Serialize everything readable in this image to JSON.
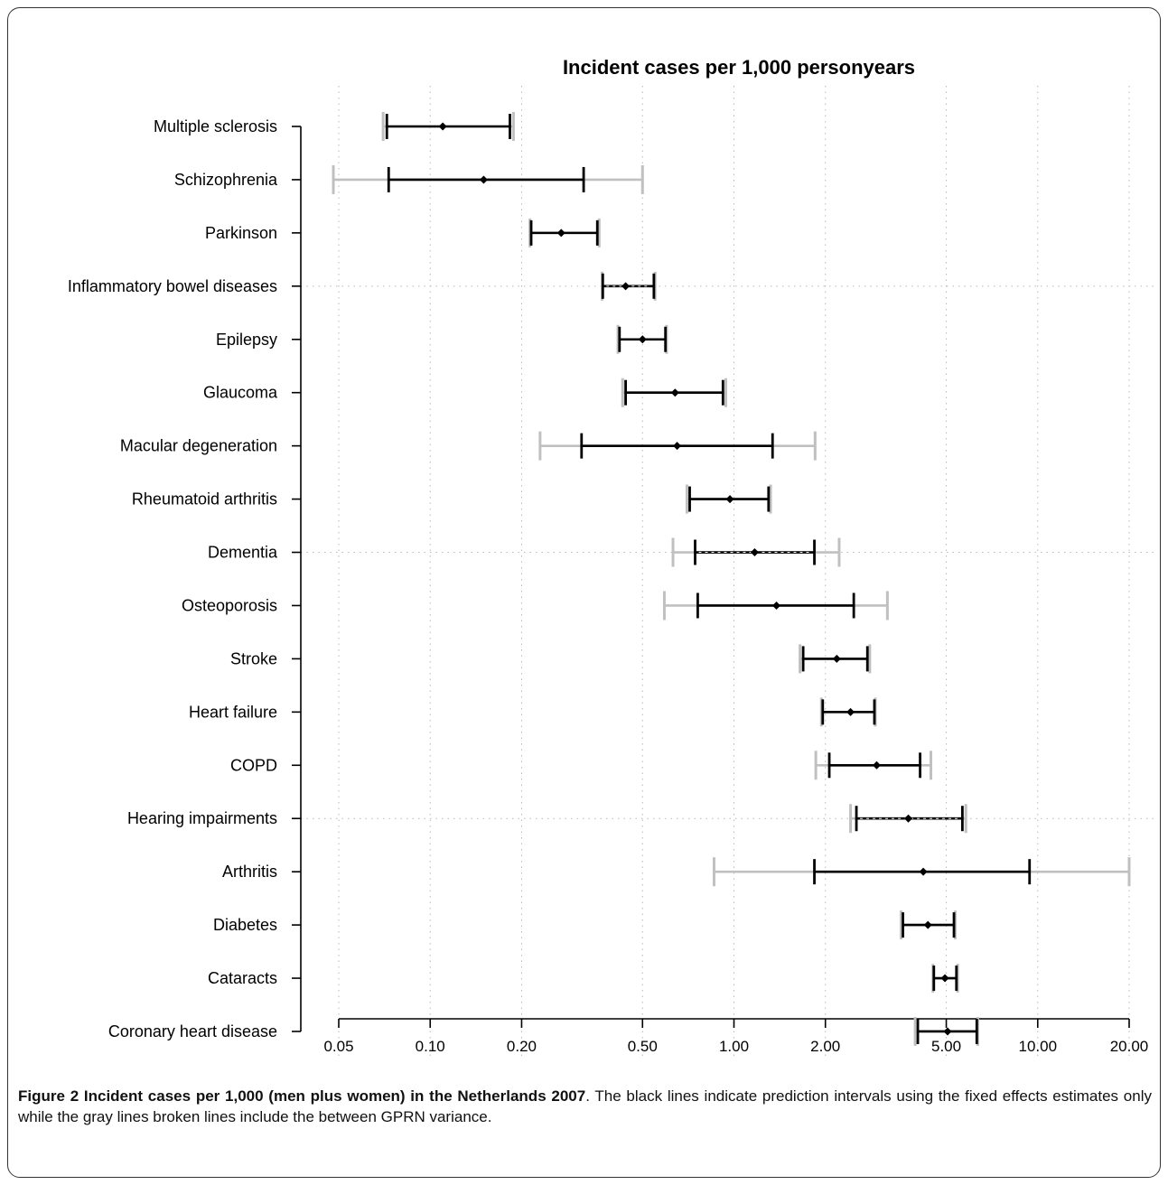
{
  "chart_data": {
    "type": "interval",
    "title": "Incident cases per 1,000 personyears",
    "xscale": "log",
    "xlim": [
      0.05,
      20
    ],
    "xticks": [
      0.05,
      0.1,
      0.2,
      0.5,
      1.0,
      2.0,
      5.0,
      10.0,
      20.0
    ],
    "xtick_labels": [
      "0.05",
      "0.10",
      "0.20",
      "0.50",
      "1.00",
      "2.00",
      "5.00",
      "10.00",
      "20.00"
    ],
    "grid": true,
    "categories": [
      "Multiple sclerosis",
      "Schizophrenia",
      "Parkinson",
      "Inflammatory bowel diseases",
      "Epilepsy",
      "Glaucoma",
      "Macular degeneration",
      "Rheumatoid arthritis",
      "Dementia",
      "Osteoporosis",
      "Stroke",
      "Heart failure",
      "COPD",
      "Hearing impairments",
      "Arthritis",
      "Diabetes",
      "Cataracts",
      "Coronary heart disease"
    ],
    "estimates": [
      0.11,
      0.15,
      0.27,
      0.44,
      0.5,
      0.64,
      0.65,
      0.97,
      1.17,
      1.38,
      2.18,
      2.42,
      2.95,
      3.75,
      4.2,
      4.35,
      4.95,
      5.05
    ],
    "black_intervals": [
      [
        0.072,
        0.183
      ],
      [
        0.073,
        0.32
      ],
      [
        0.215,
        0.355
      ],
      [
        0.37,
        0.545
      ],
      [
        0.42,
        0.595
      ],
      [
        0.44,
        0.92
      ],
      [
        0.315,
        1.34
      ],
      [
        0.715,
        1.3
      ],
      [
        0.745,
        1.84
      ],
      [
        0.76,
        2.48
      ],
      [
        1.69,
        2.75
      ],
      [
        1.96,
        2.9
      ],
      [
        2.06,
        4.1
      ],
      [
        2.53,
        5.65
      ],
      [
        1.84,
        9.4
      ],
      [
        3.6,
        5.3
      ],
      [
        4.55,
        5.4
      ],
      [
        4.03,
        6.3
      ]
    ],
    "gray_intervals": [
      [
        0.07,
        0.188
      ],
      [
        0.048,
        0.5
      ],
      [
        0.213,
        0.36
      ],
      [
        0.368,
        0.55
      ],
      [
        0.415,
        0.6
      ],
      [
        0.43,
        0.94
      ],
      [
        0.23,
        1.85
      ],
      [
        0.7,
        1.32
      ],
      [
        0.63,
        2.22
      ],
      [
        0.59,
        3.2
      ],
      [
        1.65,
        2.8
      ],
      [
        1.94,
        2.92
      ],
      [
        1.86,
        4.45
      ],
      [
        2.42,
        5.8
      ],
      [
        0.86,
        20.0
      ],
      [
        3.55,
        5.35
      ],
      [
        4.52,
        5.45
      ],
      [
        3.95,
        6.35
      ]
    ],
    "dotted_rows": [
      3,
      8,
      13
    ],
    "colors": {
      "black": "#000000",
      "gray": "#c0c0c0",
      "grid": "#b8b8b8"
    }
  },
  "caption": {
    "figure_label": "Figure 2 Incident cases per 1,000 (men plus women) in the Netherlands 2007",
    "body": ". The black lines indicate prediction intervals using the fixed effects estimates only while the gray lines broken lines include the between GPRN variance."
  }
}
